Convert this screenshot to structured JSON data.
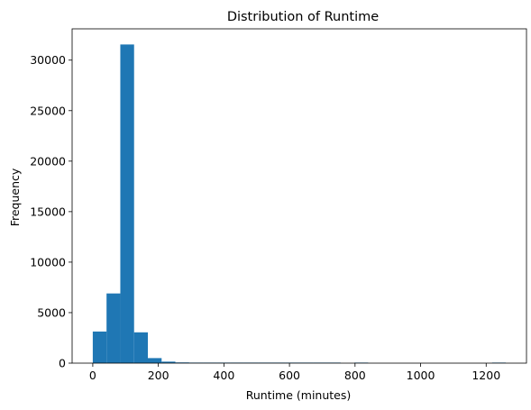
{
  "chart_data": {
    "type": "bar",
    "subtype": "histogram",
    "title": "Distribution of Runtime",
    "xlabel": "Runtime (minutes)",
    "ylabel": "Frequency",
    "xlim": [
      -63,
      1323
    ],
    "ylim": [
      0,
      33100
    ],
    "xticks": [
      0,
      200,
      400,
      600,
      800,
      1000,
      1200
    ],
    "xtick_labels": [
      "0",
      "200",
      "400",
      "600",
      "800",
      "1000",
      "1200"
    ],
    "yticks": [
      0,
      5000,
      10000,
      15000,
      20000,
      25000,
      30000
    ],
    "ytick_labels": [
      "0",
      "5000",
      "10000",
      "15000",
      "20000",
      "25000",
      "30000"
    ],
    "grid": false,
    "legend": false,
    "color": "#1f77b4",
    "bins": [
      {
        "x0": 0,
        "x1": 42,
        "value": 3130
      },
      {
        "x0": 42,
        "x1": 84,
        "value": 6900
      },
      {
        "x0": 84,
        "x1": 126,
        "value": 31550
      },
      {
        "x0": 126,
        "x1": 168,
        "value": 3050
      },
      {
        "x0": 168,
        "x1": 210,
        "value": 500
      },
      {
        "x0": 210,
        "x1": 252,
        "value": 150
      },
      {
        "x0": 252,
        "x1": 294,
        "value": 70
      },
      {
        "x0": 294,
        "x1": 336,
        "value": 40
      },
      {
        "x0": 336,
        "x1": 378,
        "value": 20
      },
      {
        "x0": 378,
        "x1": 420,
        "value": 8
      },
      {
        "x0": 420,
        "x1": 462,
        "value": 5
      },
      {
        "x0": 462,
        "x1": 504,
        "value": 3
      },
      {
        "x0": 504,
        "x1": 546,
        "value": 2
      },
      {
        "x0": 546,
        "x1": 588,
        "value": 2
      },
      {
        "x0": 588,
        "x1": 630,
        "value": 1
      },
      {
        "x0": 630,
        "x1": 672,
        "value": 1
      },
      {
        "x0": 672,
        "x1": 714,
        "value": 1
      },
      {
        "x0": 714,
        "x1": 756,
        "value": 1
      },
      {
        "x0": 756,
        "x1": 798,
        "value": 0
      },
      {
        "x0": 798,
        "x1": 840,
        "value": 1
      },
      {
        "x0": 840,
        "x1": 882,
        "value": 0
      },
      {
        "x0": 882,
        "x1": 924,
        "value": 0
      },
      {
        "x0": 924,
        "x1": 966,
        "value": 0
      },
      {
        "x0": 966,
        "x1": 1008,
        "value": 0
      },
      {
        "x0": 1008,
        "x1": 1050,
        "value": 0
      },
      {
        "x0": 1050,
        "x1": 1092,
        "value": 0
      },
      {
        "x0": 1092,
        "x1": 1134,
        "value": 0
      },
      {
        "x0": 1134,
        "x1": 1176,
        "value": 0
      },
      {
        "x0": 1176,
        "x1": 1218,
        "value": 0
      },
      {
        "x0": 1218,
        "x1": 1260,
        "value": 1
      }
    ]
  }
}
